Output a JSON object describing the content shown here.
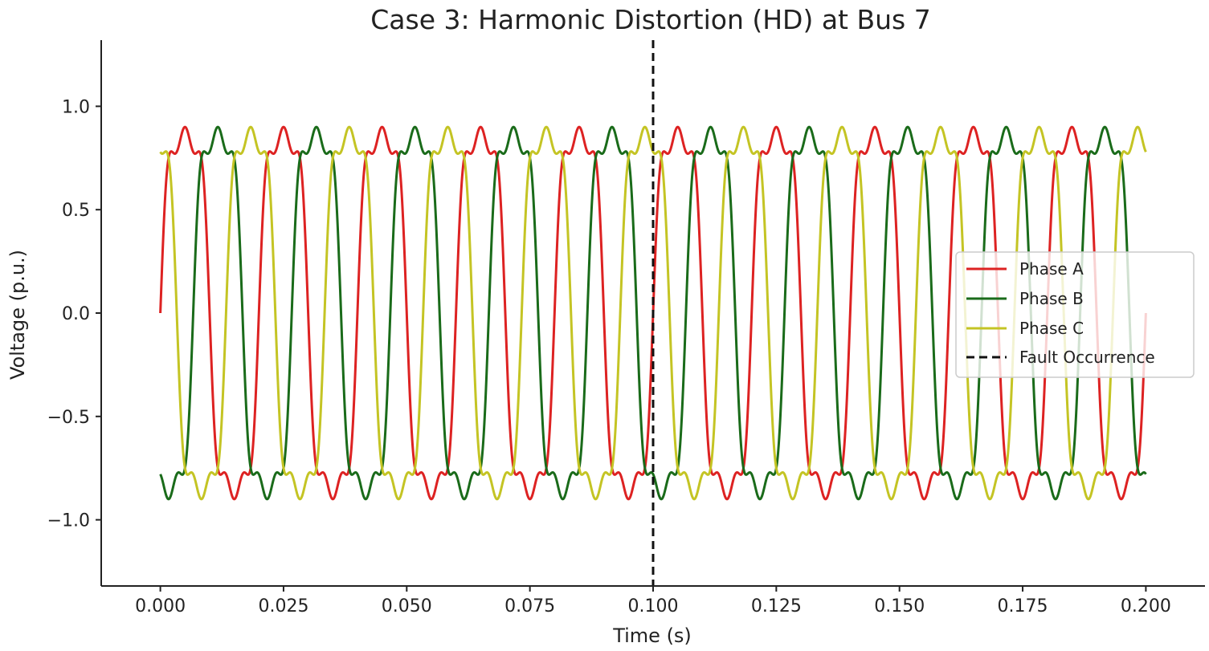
{
  "chart_data": {
    "type": "line",
    "title": "Case 3: Harmonic Distortion (HD) at Bus 7",
    "xlabel": "Time (s)",
    "ylabel": "Voltage (p.u.)",
    "xlim": [
      -0.012,
      0.212
    ],
    "ylim": [
      -1.32,
      1.32
    ],
    "xticks": [
      0.0,
      0.025,
      0.05,
      0.075,
      0.1,
      0.125,
      0.15,
      0.175,
      0.2
    ],
    "xtick_labels": [
      "0.000",
      "0.025",
      "0.050",
      "0.075",
      "0.100",
      "0.125",
      "0.150",
      "0.175",
      "0.200"
    ],
    "yticks": [
      -1.0,
      -0.5,
      0.0,
      0.5,
      1.0
    ],
    "ytick_labels": [
      "−1.0",
      "−0.5",
      "0.0",
      "0.5",
      "1.0"
    ],
    "grid": false,
    "legend_position": "center-right",
    "fundamental_frequency_hz": 50,
    "harmonics": [
      {
        "order": 3,
        "amplitude": 0.2
      },
      {
        "order": 5,
        "amplitude": 0.1
      }
    ],
    "x_range": [
      0.0,
      0.2
    ],
    "series": [
      {
        "name": "Phase A",
        "color": "#dd2222",
        "phase_deg": 0
      },
      {
        "name": "Phase B",
        "color": "#1a6b1a",
        "phase_deg": -120
      },
      {
        "name": "Phase C",
        "color": "#c4c424",
        "phase_deg": 120
      }
    ],
    "fault_line": {
      "name": "Fault Occurrence",
      "x": 0.1,
      "color": "#111111"
    }
  }
}
